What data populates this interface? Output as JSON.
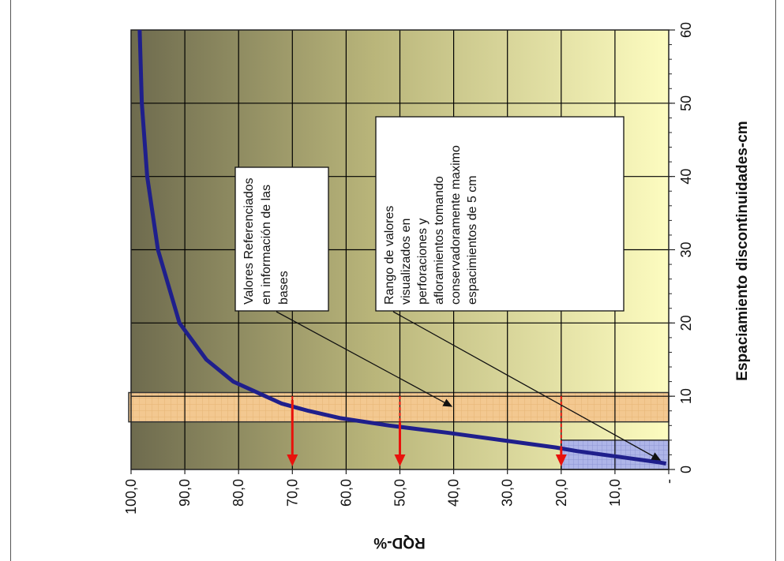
{
  "chart_data": {
    "type": "line",
    "orientation": "rotated-90-clockwise",
    "xlabel": "Espaciamiento discontinuidades-cm",
    "ylabel": "RQD-%",
    "xlim": [
      0,
      60
    ],
    "ylim": [
      0,
      100
    ],
    "x_ticks": [
      "0",
      "10",
      "20",
      "30",
      "40",
      "50",
      "60"
    ],
    "y_ticks": [
      "-",
      "10,0",
      "20,0",
      "30,0",
      "40,0",
      "50,0",
      "60,0",
      "70,0",
      "80,0",
      "90,0",
      "100,0"
    ],
    "grid": true,
    "legend": "none",
    "series": [
      {
        "x": [
          0.8,
          1.0,
          1.5,
          2.0,
          2.5,
          3.0,
          4.0,
          5.0,
          6.0,
          7.0,
          8.0,
          9.0,
          10.0,
          12.0,
          15.0,
          18.0,
          20.0,
          25.0,
          30.0,
          35.0,
          40.0,
          45.0,
          50.0,
          55.0,
          60.0
        ],
        "y": [
          0.5,
          2.0,
          7.0,
          12.0,
          17.0,
          21.0,
          31.0,
          41.0,
          52.0,
          61.0,
          67.0,
          72.0,
          75.0,
          81.0,
          86.0,
          89.0,
          91.0,
          93.0,
          95.0,
          96.0,
          97.0,
          97.5,
          98.0,
          98.2,
          98.4
        ]
      }
    ],
    "shaded_ranges": [
      {
        "x": [
          6.5,
          10.5
        ],
        "y": [
          0,
          100
        ],
        "label": "Valores Referenciados en información de las bases"
      },
      {
        "x": [
          0,
          4
        ],
        "y": [
          0,
          20
        ],
        "label": "Rango de valores visualizados en perforaciones y afloramientos tomando conservadoramente maximo espacimientos de 5 cm"
      }
    ],
    "markers": [
      {
        "x": 9.5,
        "y": 70
      },
      {
        "x": 6.5,
        "y": 50
      },
      {
        "x": 3.0,
        "y": 20
      }
    ],
    "annotations": [
      {
        "lines": [
          "Valores Referenciados",
          "en información de las",
          "bases"
        ]
      },
      {
        "lines": [
          "Rango de valores",
          "visualizados en",
          "perforaciones y",
          "afloramientos tomando",
          "conservadoramente maximo",
          "espacimientos de 5 cm"
        ]
      }
    ],
    "colors": {
      "curve": "#1f1f8c",
      "arrows": "#e8120c",
      "band": "#f4c98c",
      "box": "#b7bde6",
      "plot_dark": "#6e6b4e",
      "plot_light": "#fdfcc0",
      "grid": "#000000"
    }
  }
}
